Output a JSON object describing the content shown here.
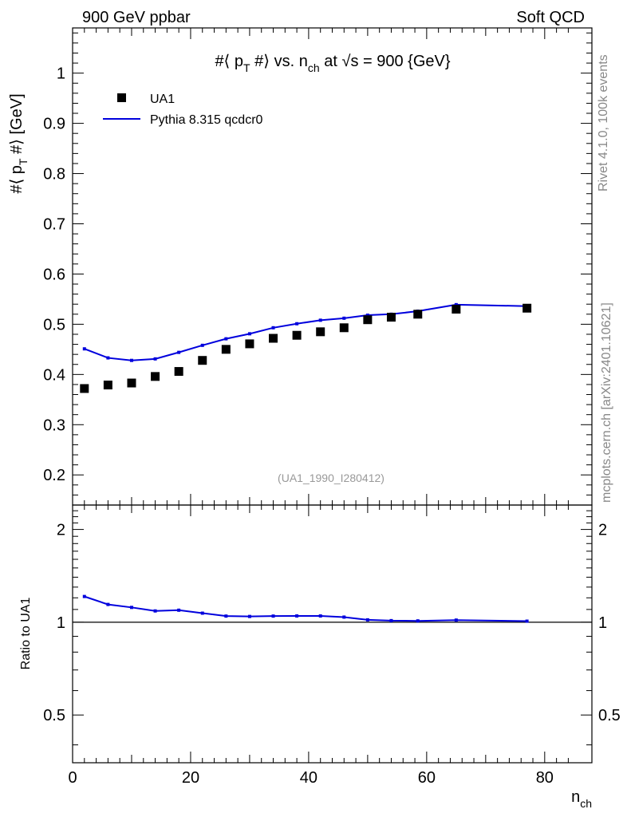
{
  "header": {
    "left": "900 GeV ppbar",
    "right": "Soft QCD"
  },
  "side_labels": {
    "rivet": "Rivet 4.1.0,  100k events",
    "mcplots": "mcplots.cern.ch [arXiv:2401.10621]"
  },
  "colors": {
    "data": "#000000",
    "mc": "#0000dd",
    "watermark": "#999999",
    "side_text": "#888888"
  },
  "chart_data": [
    {
      "type": "scatter",
      "title_parts": {
        "pre": "#⟨ p",
        "sub1": "T",
        "mid": " #⟩ vs. n",
        "sub2": "ch",
        "post": " at √s = 900 {GeV}"
      },
      "ylabel_parts": {
        "pre": "#⟨ p",
        "sub": "T",
        "post": " #⟩ [GeV]"
      },
      "ylim": [
        0.14,
        1.09
      ],
      "y_ticks": [
        "0.2",
        "0.3",
        "0.4",
        "0.5",
        "0.6",
        "0.7",
        "0.8",
        "0.9",
        "1"
      ],
      "watermark": "(UA1_1990_I280412)",
      "legend": {
        "position": "top-left",
        "entries": [
          "UA1",
          "Pythia 8.315 qcdcr0"
        ]
      },
      "series": [
        {
          "name": "UA1",
          "kind": "markers",
          "x": [
            2,
            6,
            10,
            14,
            18,
            22,
            26,
            30,
            34,
            38,
            42,
            46,
            50,
            54,
            58.5,
            65,
            77
          ],
          "y": [
            0.372,
            0.379,
            0.383,
            0.396,
            0.406,
            0.428,
            0.45,
            0.461,
            0.472,
            0.478,
            0.485,
            0.493,
            0.509,
            0.514,
            0.52,
            0.53,
            0.532
          ]
        },
        {
          "name": "Pythia 8.315 qcdcr0",
          "kind": "line",
          "x": [
            2,
            6,
            10,
            14,
            18,
            22,
            26,
            30,
            34,
            38,
            42,
            46,
            50,
            54,
            58.5,
            65,
            77
          ],
          "y": [
            0.451,
            0.433,
            0.428,
            0.431,
            0.444,
            0.458,
            0.471,
            0.481,
            0.493,
            0.501,
            0.508,
            0.512,
            0.518,
            0.52,
            0.526,
            0.539,
            0.536
          ]
        }
      ]
    },
    {
      "type": "line",
      "ylabel": "Ratio to UA1",
      "xlabel_parts": {
        "pre": "n",
        "sub": "ch"
      },
      "xlim": [
        0,
        88
      ],
      "x_ticks": [
        "0",
        "20",
        "40",
        "60",
        "80"
      ],
      "ylim_log": [
        0.35,
        2.4
      ],
      "y_ticks_left": [
        "0.5",
        "1",
        "2"
      ],
      "y_ticks_right": [
        "0.5",
        "1",
        "2"
      ],
      "reference": 1,
      "series": [
        {
          "name": "Pythia 8.315 qcdcr0 / UA1",
          "x": [
            2,
            6,
            10,
            14,
            18,
            22,
            26,
            30,
            34,
            38,
            42,
            46,
            50,
            54,
            58.5,
            65,
            77
          ],
          "y": [
            1.212,
            1.142,
            1.117,
            1.088,
            1.094,
            1.07,
            1.047,
            1.044,
            1.047,
            1.048,
            1.048,
            1.039,
            1.018,
            1.012,
            1.01,
            1.016,
            1.008
          ]
        }
      ]
    }
  ]
}
